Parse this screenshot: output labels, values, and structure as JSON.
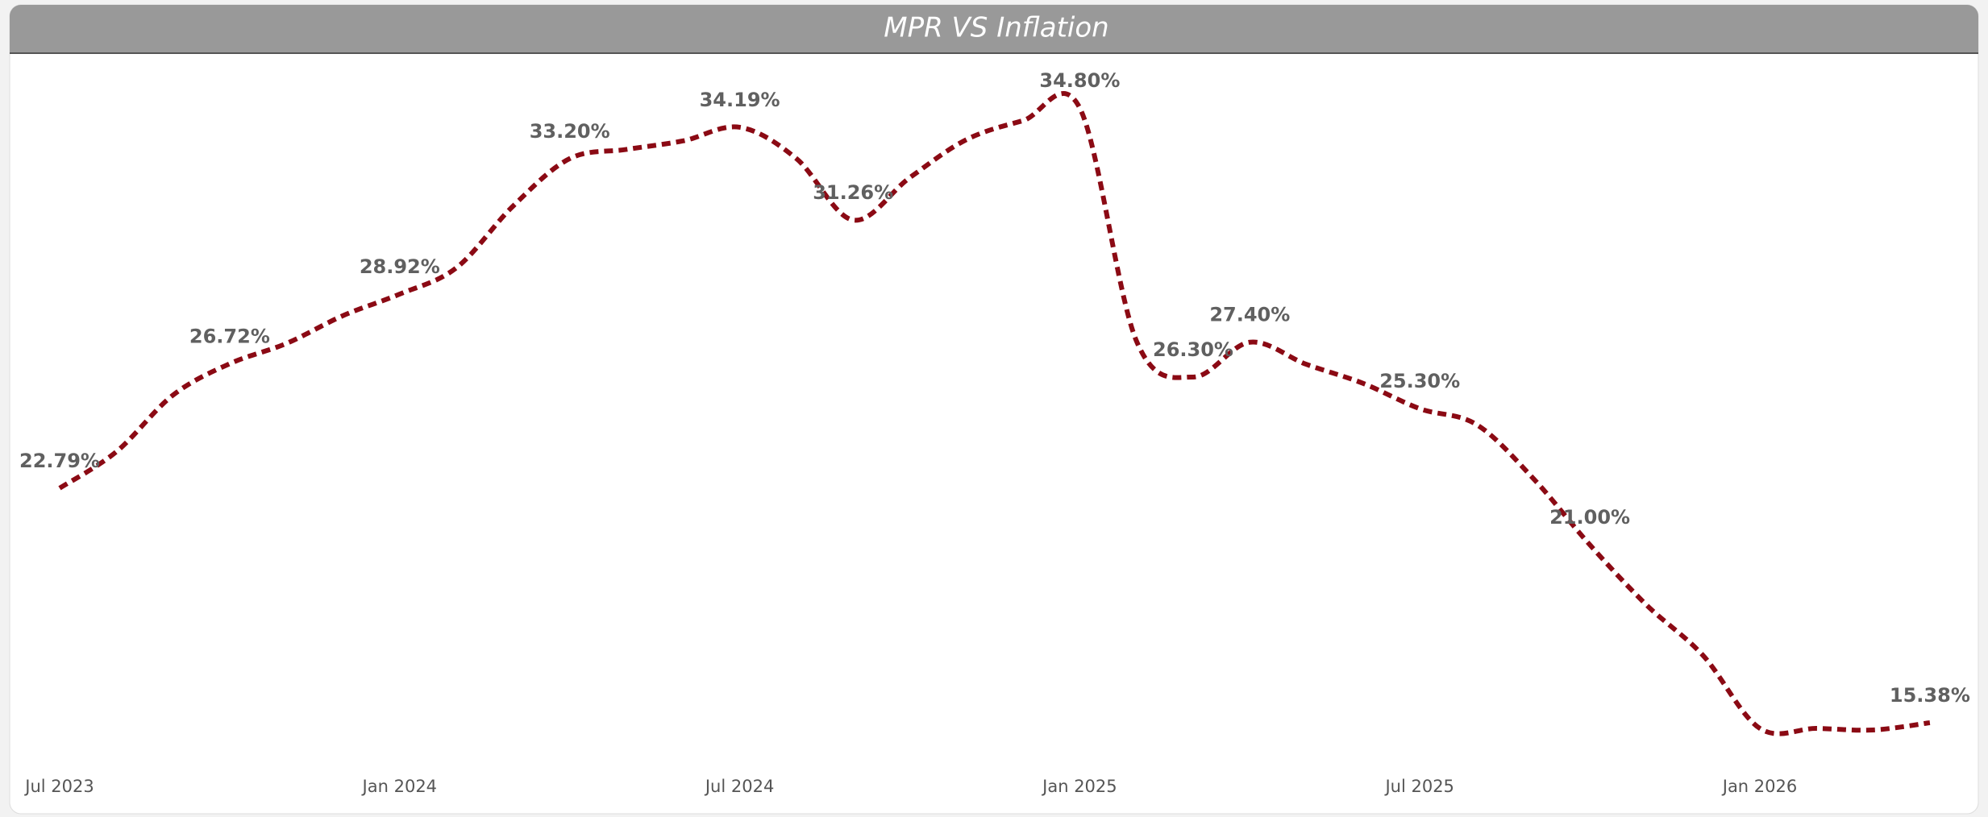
{
  "chart_data": {
    "type": "line",
    "title": "MPR VS Inflation",
    "categories": [
      "Jul 2023",
      null,
      null,
      null,
      null,
      null,
      "Jan 2024",
      null,
      null,
      null,
      null,
      null,
      "Jul 2024",
      null,
      null,
      null,
      null,
      null,
      "Jan 2025",
      null,
      null,
      null,
      null,
      null,
      "Jul 2025",
      null,
      null,
      null,
      null,
      null,
      "Jan 2026",
      null,
      null,
      null
    ],
    "values": [
      22.79,
      23.94,
      25.73,
      26.72,
      27.36,
      28.24,
      28.92,
      29.75,
      31.7,
      33.2,
      33.49,
      33.76,
      34.19,
      33.2,
      31.26,
      32.6,
      33.8,
      34.4,
      34.8,
      27.44,
      26.3,
      27.4,
      26.7,
      26.1,
      25.3,
      24.8,
      23.1,
      21.0,
      19.1,
      17.5,
      15.2,
      15.2,
      15.15,
      15.38
    ],
    "value_labels": [
      "22.79%",
      null,
      null,
      "26.72%",
      null,
      null,
      "28.92%",
      null,
      null,
      "33.20%",
      null,
      null,
      "34.19%",
      null,
      "31.26%",
      null,
      null,
      null,
      "34.80%",
      null,
      "26.30%",
      "27.40%",
      null,
      null,
      "25.30%",
      null,
      null,
      "21.00%",
      null,
      null,
      null,
      null,
      null,
      "15.38%"
    ],
    "color": "#8b0a14",
    "line_style": "dashed"
  }
}
